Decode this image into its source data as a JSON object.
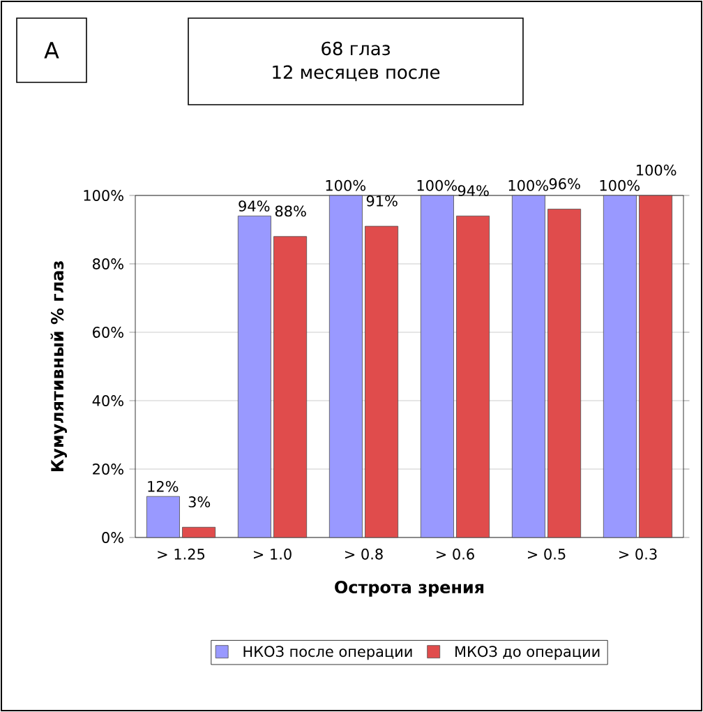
{
  "chart_data": {
    "type": "bar",
    "title": "68 глаз",
    "subtitle": "12 месяцев после",
    "annotations": [
      "A"
    ],
    "xlabel": "Острота зрения",
    "ylabel": "Кумулятивный % глаз",
    "categories": [
      "> 1.25",
      "> 1.0",
      "> 0.8",
      "> 0.6",
      "> 0.5",
      "> 0.3"
    ],
    "series": [
      {
        "name": "НКОЗ после операции",
        "color": "#9999ff",
        "values": [
          12,
          94,
          100,
          100,
          100,
          100
        ],
        "value_labels": [
          "12%",
          "94%",
          "100%",
          "100%",
          "100%",
          "100%"
        ]
      },
      {
        "name": "МКОЗ до операции",
        "color": "#e04c4c",
        "values": [
          3,
          88,
          91,
          94,
          96,
          100
        ],
        "value_labels": [
          "3%",
          "88%",
          "91%",
          "94%",
          "96%",
          "100%"
        ]
      }
    ],
    "ylim": [
      0,
      100
    ],
    "yticks": [
      {
        "value": 0,
        "label": "0%"
      },
      {
        "value": 20,
        "label": "20%"
      },
      {
        "value": 40,
        "label": "40%"
      },
      {
        "value": 60,
        "label": "60%"
      },
      {
        "value": 80,
        "label": "80%"
      },
      {
        "value": 100,
        "label": "100%"
      }
    ],
    "grid": "y",
    "legend": "bottom"
  }
}
